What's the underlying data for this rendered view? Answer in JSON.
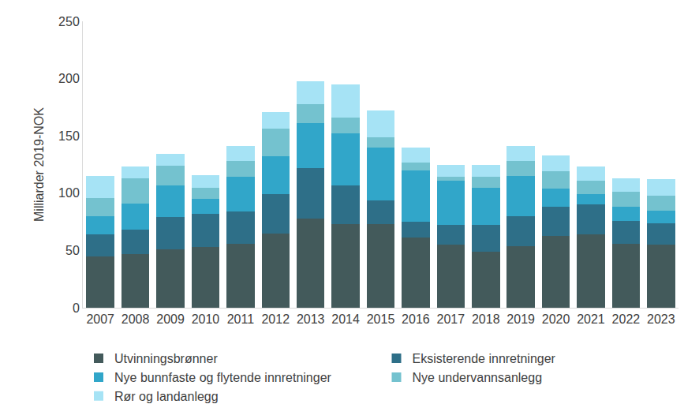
{
  "chart_data": {
    "type": "bar",
    "stacked": true,
    "grid": false,
    "legend": "bottom",
    "y_label": "Milliarder 2019-NOK",
    "categories": [
      "2007",
      "2008",
      "2009",
      "2010",
      "2011",
      "2012",
      "2013",
      "2014",
      "2015",
      "2016",
      "2017",
      "2018",
      "2019",
      "2020",
      "2021",
      "2022",
      "2023"
    ],
    "ylim": [
      0,
      250
    ],
    "yticks": [
      0,
      50,
      100,
      150,
      200,
      250
    ],
    "series": [
      {
        "name": "Utvinningsbrønner",
        "color": "#435a5b",
        "values": [
          45,
          47,
          51,
          53,
          56,
          65,
          78,
          73,
          73,
          61,
          55,
          49,
          54,
          63,
          64,
          56,
          55
        ]
      },
      {
        "name": "Eksisterende innretninger",
        "color": "#2e6f88",
        "values": [
          19,
          21,
          28,
          29,
          28,
          34,
          44,
          34,
          21,
          14,
          17,
          23,
          26,
          25,
          26,
          20,
          19
        ]
      },
      {
        "name": "Nye bunnfaste og flytende innretninger",
        "color": "#31a6c9",
        "values": [
          16,
          23,
          28,
          13,
          30,
          33,
          39,
          45,
          46,
          45,
          39,
          33,
          35,
          16,
          9,
          12,
          11
        ]
      },
      {
        "name": "Nye undervannsanlegg",
        "color": "#74c2cf",
        "values": [
          16,
          22,
          17,
          10,
          14,
          24,
          17,
          14,
          9,
          7,
          3,
          9,
          13,
          15,
          12,
          13,
          13
        ]
      },
      {
        "name": "Rør og landanlegg",
        "color": "#a6e3f5",
        "values": [
          19,
          10,
          10,
          11,
          13,
          15,
          20,
          29,
          23,
          13,
          11,
          11,
          13,
          14,
          12,
          12,
          14
        ]
      }
    ]
  }
}
